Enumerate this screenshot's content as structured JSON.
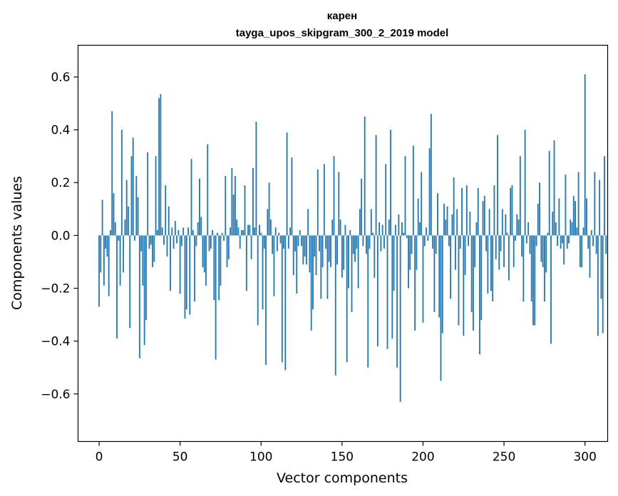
{
  "chart_data": {
    "type": "bar",
    "title": "карен",
    "subtitle": "tayga_upos_skipgram_300_2_2019 model",
    "xlabel": "Vector components",
    "ylabel": "Components values",
    "xlim": [
      -13,
      314
    ],
    "ylim": [
      -0.78,
      0.72
    ],
    "xticks": [
      0,
      50,
      100,
      150,
      200,
      250,
      300
    ],
    "yticks": [
      -0.6,
      -0.4,
      -0.2,
      0.0,
      0.2,
      0.4,
      0.6
    ],
    "ytick_labels": [
      "−0.6",
      "−0.4",
      "−0.2",
      "0.0",
      "0.2",
      "0.4",
      "0.6"
    ],
    "xtick_labels": [
      "0",
      "50",
      "100",
      "150",
      "200",
      "250",
      "300"
    ],
    "values": [
      -0.27,
      -0.14,
      0.135,
      -0.19,
      -0.05,
      -0.08,
      -0.23,
      0.02,
      0.47,
      0.16,
      0.05,
      -0.39,
      -0.02,
      -0.19,
      0.4,
      -0.14,
      0.06,
      0.21,
      0.11,
      -0.35,
      0.3,
      0.37,
      -0.02,
      0.225,
      0.145,
      -0.465,
      -0.06,
      -0.19,
      -0.415,
      -0.32,
      0.315,
      -0.05,
      -0.035,
      -0.12,
      -0.1,
      0.3,
      0.02,
      0.52,
      0.535,
      0.03,
      -0.035,
      0.19,
      -0.08,
      0.11,
      -0.21,
      0.03,
      -0.05,
      0.055,
      -0.03,
      0.02,
      -0.22,
      -0.04,
      0.03,
      -0.315,
      -0.28,
      0.03,
      -0.3,
      0.29,
      0.02,
      -0.25,
      -0.04,
      0.05,
      0.215,
      0.07,
      -0.12,
      -0.14,
      -0.19,
      0.345,
      -0.06,
      -0.05,
      0.02,
      -0.245,
      -0.47,
      0.01,
      -0.245,
      -0.19,
      0.01,
      -0.02,
      0.225,
      -0.12,
      -0.09,
      0.03,
      0.255,
      0.155,
      0.225,
      0.06,
      0.03,
      -0.05,
      0.02,
      0.02,
      0.19,
      -0.21,
      0.04,
      0.04,
      -0.09,
      0.255,
      0.03,
      0.43,
      -0.34,
      0.04,
      0.01,
      -0.28,
      -0.05,
      -0.49,
      0.1,
      0.2,
      0.06,
      -0.07,
      -0.23,
      0.03,
      -0.06,
      0.01,
      -0.03,
      -0.48,
      -0.05,
      -0.51,
      0.39,
      -0.05,
      0.03,
      0.295,
      -0.15,
      -0.06,
      -0.22,
      -0.04,
      0.02,
      -0.04,
      -0.11,
      -0.08,
      -0.11,
      0.1,
      -0.14,
      -0.36,
      -0.28,
      -0.08,
      -0.15,
      0.25,
      -0.06,
      -0.24,
      -0.12,
      0.27,
      -0.05,
      -0.24,
      -0.1,
      -0.12,
      0.06,
      0.3,
      -0.53,
      -0.11,
      0.24,
      0.06,
      -0.16,
      -0.13,
      0.04,
      -0.48,
      -0.2,
      0.02,
      -0.29,
      -0.07,
      -0.1,
      -0.05,
      -0.2,
      0.1,
      0.215,
      -0.04,
      0.45,
      -0.07,
      -0.5,
      -0.05,
      0.1,
      0.01,
      -0.16,
      0.38,
      -0.42,
      0.05,
      -0.06,
      0.04,
      -0.05,
      0.27,
      -0.43,
      0.06,
      0.4,
      -0.39,
      -0.21,
      0.04,
      -0.5,
      0.08,
      -0.63,
      0.05,
      0.01,
      0.3,
      -0.01,
      -0.2,
      -0.13,
      -0.07,
      0.34,
      -0.36,
      -0.13,
      0.14,
      0.05,
      0.24,
      -0.33,
      -0.04,
      0.03,
      -0.02,
      0.33,
      0.46,
      -0.05,
      -0.29,
      -0.07,
      0.16,
      -0.31,
      -0.55,
      -0.37,
      0.12,
      0.06,
      0.11,
      -0.04,
      -0.24,
      0.08,
      0.22,
      -0.13,
      0.1,
      -0.34,
      -0.05,
      0.18,
      -0.38,
      -0.15,
      0.19,
      -0.04,
      0.09,
      -0.29,
      -0.36,
      -0.12,
      0.05,
      0.18,
      -0.45,
      -0.32,
      0.13,
      0.15,
      -0.06,
      -0.22,
      0.1,
      -0.21,
      -0.25,
      0.19,
      -0.09,
      0.38,
      -0.13,
      -0.06,
      0.1,
      -0.12,
      0.08,
      0.01,
      -0.17,
      0.18,
      0.19,
      -0.12,
      -0.02,
      0.08,
      0.06,
      0.3,
      -0.08,
      -0.25,
      0.4,
      -0.03,
      0.05,
      -0.07,
      -0.25,
      -0.34,
      -0.34,
      -0.04,
      0.12,
      0.2,
      -0.1,
      -0.12,
      -0.25,
      -0.14,
      0.01,
      0.32,
      -0.41,
      0.09,
      0.36,
      0.05,
      -0.04,
      0.14,
      -0.05,
      -0.03,
      -0.11,
      0.23,
      -0.05,
      -0.03,
      0.06,
      0.05,
      0.15,
      0.13,
      0.03,
      0.24,
      -0.12,
      -0.12,
      0.03,
      0.61,
      0.14,
      -0.05,
      -0.16,
      0.02,
      -0.04,
      0.24,
      -0.07,
      -0.38,
      0.21,
      -0.24,
      -0.37,
      0.3,
      -0.07
    ]
  }
}
